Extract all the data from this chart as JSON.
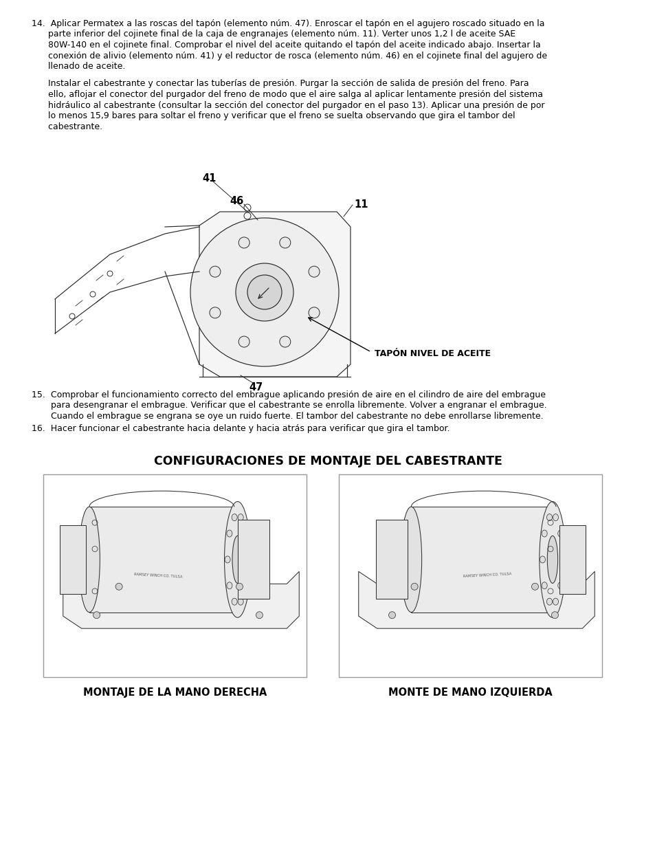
{
  "bg_color": "#ffffff",
  "text_color": "#000000",
  "para14_line1": "14.  Aplicar Permatex a las roscas del tapón (elemento núm. 47). Enroscar el tapón en el agujero roscado situado en la",
  "para14_line2": "      parte inferior del cojinete final de la caja de engranajes (elemento núm. 11). Verter unos 1,2 l de aceite SAE",
  "para14_line3": "      80W-140 en el cojinete final. Comprobar el nivel del aceite quitando el tapón del aceite indicado abajo. Insertar la",
  "para14_line4": "      conexión de alivio (elemento núm. 41) y el reductor de rosca (elemento núm. 46) en el cojinete final del agujero de",
  "para14_line5": "      llenado de aceite.",
  "para14b_line1": "      Instalar el cabestrante y conectar las tuberías de presión. Purgar la sección de salida de presión del freno. Para",
  "para14b_line2": "      ello, aflojar el conector del purgador del freno de modo que el aire salga al aplicar lentamente presión del sistema",
  "para14b_line3": "      hidráulico al cabestrante (consultar la sección del conector del purgador en el paso 13). Aplicar una presión de por",
  "para14b_line4": "      lo menos 15,9 bares para soltar el freno y verificar que el freno se suelta observando que gira el tambor del",
  "para14b_line5": "      cabestrante.",
  "para15_line1": "15.  Comprobar el funcionamiento correcto del embrague aplicando presión de aire en el cilindro de aire del embrague",
  "para15_line2": "       para desengranar el embrague. Verificar que el cabestrante se enrolla libremente. Volver a engranar el embrague.",
  "para15_line3": "       Cuando el embrague se engrana se oye un ruido fuerte. El tambor del cabestrante no debe enrollarse libremente.",
  "para16": "16.  Hacer funcionar el cabestrante hacia delante y hacia atrás para verificar que gira el tambor.",
  "section_title": "CONFIGURACIONES DE MONTAJE DEL CABESTRANTE",
  "label_left": "MONTAJE DE LA MANO DERECHA",
  "label_right": "MONTE DE MANO IZQUIERDA",
  "label_tapon": "TAPÓN NIVEL DE ACEITE",
  "num_41": "41",
  "num_46": "46",
  "num_11": "11",
  "num_47": "47",
  "font_size_body": 9.0,
  "font_size_title": 12.5,
  "font_size_label": 10.5,
  "font_size_nums": 10.5
}
